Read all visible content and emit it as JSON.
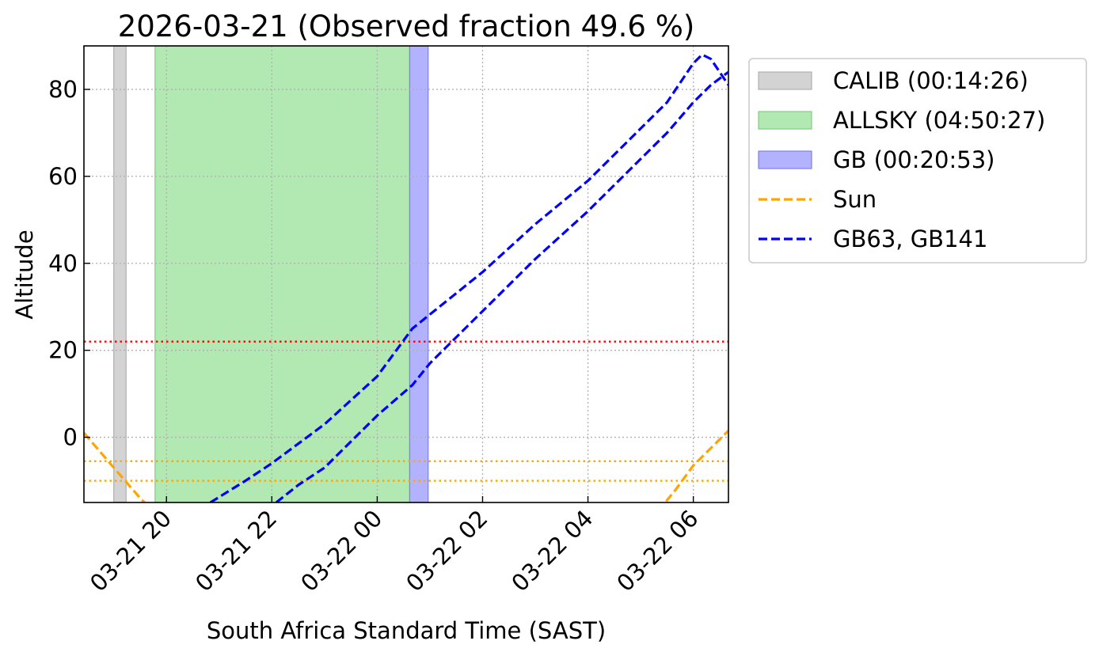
{
  "chart_data": {
    "type": "line",
    "title": "2026-03-21 (Observed fraction 49.6 %)",
    "xlabel": "South Africa Standard Time (SAST)",
    "ylabel": "Altitude",
    "x_unit": "SAST hours",
    "xlim": [
      "2026-03-21 18:26",
      "2026-03-22 06:40"
    ],
    "ylim": [
      -15,
      90
    ],
    "x_ticks": [
      {
        "t": "2026-03-21 20:00",
        "label": "03-21 20"
      },
      {
        "t": "2026-03-21 22:00",
        "label": "03-21 22"
      },
      {
        "t": "2026-03-22 00:00",
        "label": "03-22 00"
      },
      {
        "t": "2026-03-22 02:00",
        "label": "03-22 02"
      },
      {
        "t": "2026-03-22 04:00",
        "label": "03-22 04"
      },
      {
        "t": "2026-03-22 06:00",
        "label": "03-22 06"
      }
    ],
    "y_ticks": [
      0,
      20,
      40,
      60,
      80
    ],
    "grid": true,
    "legend_position": "outside-right",
    "spans": [
      {
        "name": "CALIB (00:14:26)",
        "start": "2026-03-21 19:00",
        "end": "2026-03-21 19:14",
        "color": "#d3d3d3",
        "edge": "#b0b0b0"
      },
      {
        "name": "ALLSKY (04:50:27)",
        "start": "2026-03-21 19:47",
        "end": "2026-03-22 00:37",
        "color": "#b2e8b2",
        "edge": "#7fcf7f"
      },
      {
        "name": "GB (00:20:53)",
        "start": "2026-03-22 00:37",
        "end": "2026-03-22 00:58",
        "color": "#b2b2ff",
        "edge": "#7f7fee"
      }
    ],
    "hlines": [
      {
        "y": 22,
        "color": "#ff0000"
      },
      {
        "y": -5.5,
        "color": "#ffa500"
      },
      {
        "y": -10,
        "color": "#ffa500"
      }
    ],
    "series": [
      {
        "name": "Sun",
        "color": "#ffa500",
        "segments": [
          {
            "x": [
              "2026-03-21 18:26",
              "2026-03-21 19:00",
              "2026-03-21 19:30",
              "2026-03-21 19:45"
            ],
            "y": [
              1,
              -7,
              -14,
              -17
            ]
          },
          {
            "x": [
              "2026-03-22 05:20",
              "2026-03-22 05:40",
              "2026-03-22 06:00",
              "2026-03-22 06:20",
              "2026-03-22 06:40"
            ],
            "y": [
              -17,
              -12,
              -6.5,
              -2.5,
              1.5
            ]
          }
        ]
      },
      {
        "name": "GB63, GB141",
        "color": "#0000ff",
        "segments": [
          {
            "x": [
              "2026-03-21 20:50",
              "2026-03-21 21:30",
              "2026-03-21 22:00",
              "2026-03-21 23:00",
              "2026-03-22 00:00",
              "2026-03-22 00:40",
              "2026-03-22 02:00",
              "2026-03-22 03:00",
              "2026-03-22 04:00",
              "2026-03-22 05:00",
              "2026-03-22 05:30",
              "2026-03-22 06:00",
              "2026-03-22 06:10",
              "2026-03-22 06:20",
              "2026-03-22 06:30",
              "2026-03-22 06:40"
            ],
            "y": [
              -15,
              -10,
              -6,
              3,
              14,
              25,
              38,
              49,
              59,
              71,
              77,
              86,
              88,
              87,
              84,
              81
            ]
          },
          {
            "x": [
              "2026-03-21 22:05",
              "2026-03-21 22:30",
              "2026-03-21 23:00",
              "2026-03-22 00:00",
              "2026-03-22 00:40",
              "2026-03-22 01:00",
              "2026-03-22 02:00",
              "2026-03-22 03:00",
              "2026-03-22 04:00",
              "2026-03-22 05:00",
              "2026-03-22 05:30",
              "2026-03-22 06:00",
              "2026-03-22 06:20",
              "2026-03-22 06:40"
            ],
            "y": [
              -15,
              -11,
              -7,
              5,
              12,
              17,
              29,
              41,
              52,
              64,
              70,
              77,
              81,
              84
            ]
          }
        ]
      }
    ],
    "legend": [
      {
        "label": "CALIB (00:14:26)",
        "kind": "patch",
        "color": "#d3d3d3",
        "edge": "#b0b0b0"
      },
      {
        "label": "ALLSKY (04:50:27)",
        "kind": "patch",
        "color": "#b2e8b2",
        "edge": "#7fcf7f"
      },
      {
        "label": "GB (00:20:53)",
        "kind": "patch",
        "color": "#b2b2ff",
        "edge": "#7f7fee"
      },
      {
        "label": "Sun",
        "kind": "dash",
        "color": "#ffa500"
      },
      {
        "label": "GB63, GB141",
        "kind": "dash",
        "color": "#0000ff"
      }
    ]
  }
}
